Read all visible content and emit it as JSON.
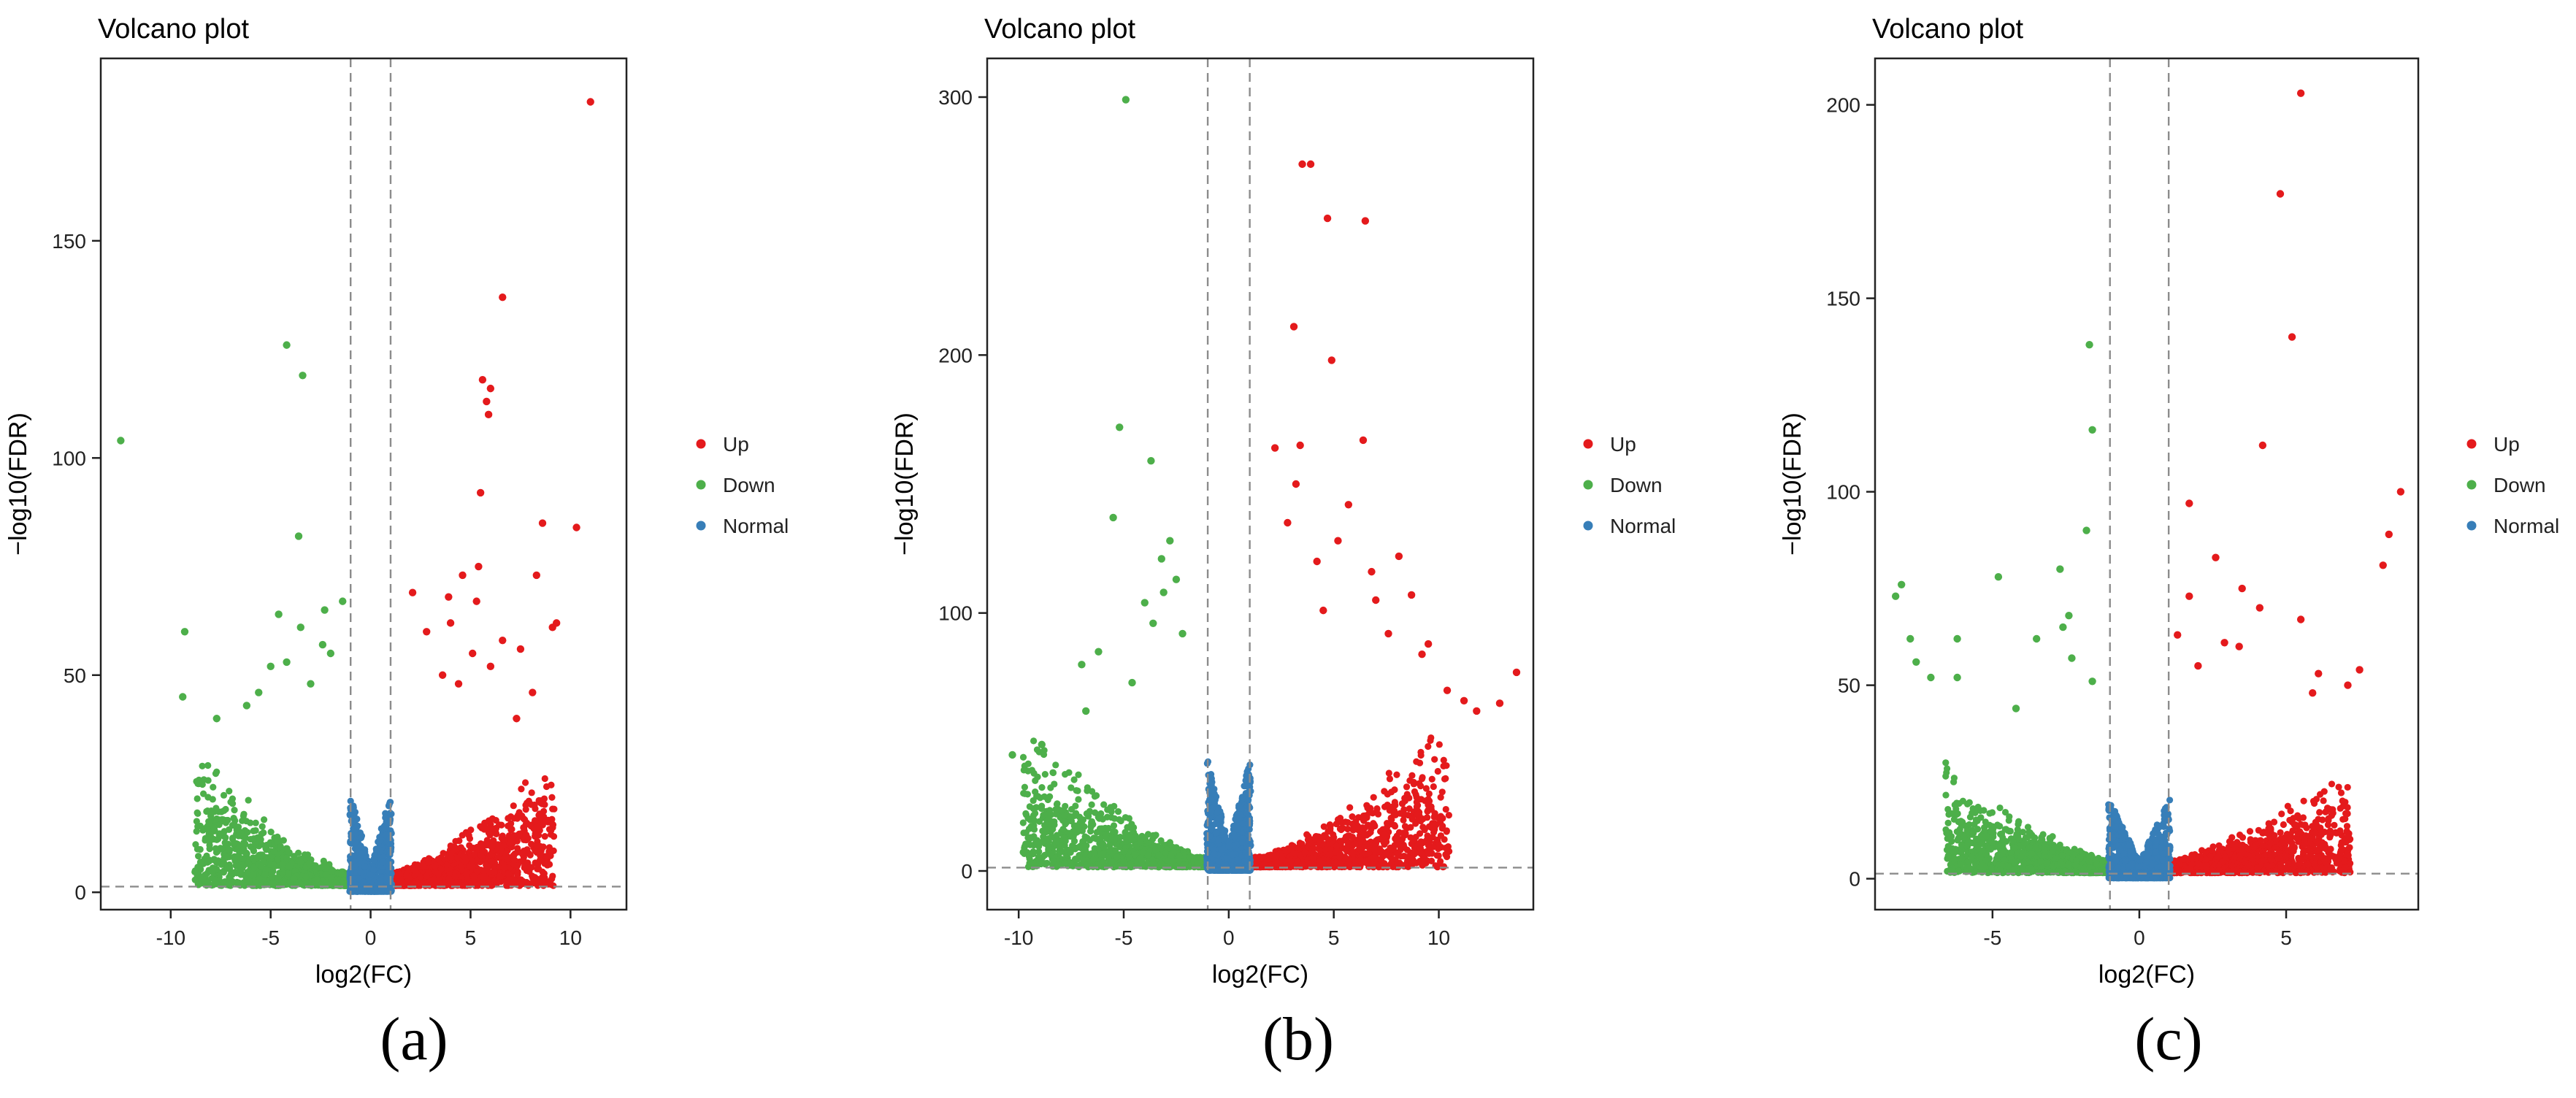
{
  "panels": {
    "a": {
      "label": "(a)"
    },
    "b": {
      "label": "(b)"
    },
    "c": {
      "label": "(c)"
    }
  },
  "colors": {
    "up": "#e41a1c",
    "down": "#4daf4a",
    "normal": "#377eb8",
    "threshold": "#8c8c8c"
  },
  "chart_data": [
    {
      "type": "scatter",
      "panel": "a",
      "title": "Volcano plot",
      "xlabel": "log2(FC)",
      "ylabel": "−log10(FDR)",
      "xlim": [
        -13.5,
        12.8
      ],
      "ylim": [
        -4,
        192
      ],
      "xticks": [
        -10,
        -5,
        0,
        5,
        10
      ],
      "yticks": [
        0,
        50,
        100,
        150
      ],
      "thresholds": {
        "fc": [
          -1,
          1
        ],
        "fdr": 1.3
      },
      "legend": {
        "position": "right",
        "entries": [
          "Up",
          "Down",
          "Normal"
        ]
      },
      "series": [
        {
          "name": "Up",
          "color": "#e41a1c",
          "points": [
            [
              11,
              182
            ],
            [
              6.6,
              137
            ],
            [
              5.6,
              118
            ],
            [
              6,
              116
            ],
            [
              5.8,
              113
            ],
            [
              5.9,
              110
            ],
            [
              5.5,
              92
            ],
            [
              10.3,
              84
            ],
            [
              8.6,
              85
            ],
            [
              8.3,
              73
            ],
            [
              9.3,
              62
            ],
            [
              9.1,
              61
            ],
            [
              5.4,
              75
            ],
            [
              5.3,
              67
            ],
            [
              2.1,
              69
            ],
            [
              3.9,
              68
            ],
            [
              4.6,
              73
            ],
            [
              6.6,
              58
            ],
            [
              4,
              62
            ],
            [
              5.1,
              55
            ],
            [
              7.5,
              56
            ],
            [
              2.8,
              60
            ],
            [
              3.6,
              50
            ],
            [
              6,
              52
            ],
            [
              4.4,
              48
            ],
            [
              8.1,
              46
            ],
            [
              7.3,
              40
            ]
          ]
        },
        {
          "name": "Down",
          "color": "#4daf4a",
          "points": [
            [
              -12.5,
              104
            ],
            [
              -4.2,
              126
            ],
            [
              -3.4,
              119
            ],
            [
              -3.6,
              82
            ],
            [
              -9.3,
              60
            ],
            [
              -9.4,
              45
            ],
            [
              -1.4,
              67
            ],
            [
              -2.3,
              65
            ],
            [
              -4.6,
              64
            ],
            [
              -3.5,
              61
            ],
            [
              -2.4,
              57
            ],
            [
              -2,
              55
            ],
            [
              -4.2,
              53
            ],
            [
              -5,
              52
            ],
            [
              -6.2,
              43
            ],
            [
              -7.7,
              40
            ],
            [
              -3,
              48
            ],
            [
              -5.6,
              46
            ]
          ]
        }
      ],
      "cloud": {
        "up_xmax": 9.2,
        "down_xmin": -8.8,
        "ceiling": 32
      }
    },
    {
      "type": "scatter",
      "panel": "b",
      "title": "Volcano plot",
      "xlabel": "log2(FC)",
      "ylabel": "−log10(FDR)",
      "xlim": [
        -11.5,
        14.5
      ],
      "ylim": [
        -15,
        315
      ],
      "xticks": [
        -10,
        -5,
        0,
        5,
        10
      ],
      "yticks": [
        0,
        100,
        200,
        300
      ],
      "thresholds": {
        "fc": [
          -1,
          1
        ],
        "fdr": 1.3
      },
      "legend": {
        "position": "right",
        "entries": [
          "Up",
          "Down",
          "Normal"
        ]
      },
      "series": [
        {
          "name": "Up",
          "color": "#e41a1c",
          "points": [
            [
              3.5,
              274
            ],
            [
              3.9,
              274
            ],
            [
              4.7,
              253
            ],
            [
              6.5,
              252
            ],
            [
              3.1,
              211
            ],
            [
              4.9,
              198
            ],
            [
              6.4,
              167
            ],
            [
              3.4,
              165
            ],
            [
              2.2,
              164
            ],
            [
              5.7,
              142
            ],
            [
              8.1,
              122
            ],
            [
              8.7,
              107
            ],
            [
              13.7,
              77
            ],
            [
              12.9,
              65
            ],
            [
              10.4,
              70
            ],
            [
              11.8,
              62
            ],
            [
              9.5,
              88
            ],
            [
              7,
              105
            ],
            [
              4.2,
              120
            ],
            [
              2.8,
              135
            ],
            [
              5.2,
              128
            ],
            [
              6.8,
              116
            ],
            [
              9.2,
              84
            ],
            [
              11.2,
              66
            ],
            [
              4.5,
              101
            ],
            [
              7.6,
              92
            ],
            [
              3.2,
              150
            ]
          ]
        },
        {
          "name": "Down",
          "color": "#4daf4a",
          "points": [
            [
              -4.9,
              299
            ],
            [
              -5.2,
              172
            ],
            [
              -3.7,
              159
            ],
            [
              -5.5,
              137
            ],
            [
              -2.5,
              113
            ],
            [
              -3.2,
              121
            ],
            [
              -2.8,
              128
            ],
            [
              -4,
              104
            ],
            [
              -6.2,
              85
            ],
            [
              -7,
              80
            ],
            [
              -10.3,
              45
            ],
            [
              -8.9,
              49
            ],
            [
              -6.8,
              62
            ],
            [
              -3.6,
              96
            ],
            [
              -2.2,
              92
            ],
            [
              -4.6,
              73
            ],
            [
              -3.1,
              108
            ]
          ]
        }
      ],
      "cloud": {
        "up_xmax": 10.5,
        "down_xmin": -9.8,
        "ceiling": 60
      }
    },
    {
      "type": "scatter",
      "panel": "c",
      "title": "Volcano plot",
      "xlabel": "log2(FC)",
      "ylabel": "−log10(FDR)",
      "xlim": [
        -9,
        9.5
      ],
      "ylim": [
        -8,
        212
      ],
      "xticks": [
        -5,
        0,
        5
      ],
      "yticks": [
        0,
        50,
        100,
        150,
        200
      ],
      "thresholds": {
        "fc": [
          -1,
          1
        ],
        "fdr": 1.3
      },
      "legend": {
        "position": "right",
        "entries": [
          "Up",
          "Down",
          "Normal"
        ]
      },
      "series": [
        {
          "name": "Up",
          "color": "#e41a1c",
          "points": [
            [
              5.5,
              203
            ],
            [
              4.8,
              177
            ],
            [
              5.2,
              140
            ],
            [
              4.2,
              112
            ],
            [
              8.9,
              100
            ],
            [
              1.7,
              97
            ],
            [
              8.5,
              89
            ],
            [
              8.3,
              81
            ],
            [
              2.6,
              83
            ],
            [
              3.5,
              75
            ],
            [
              1.7,
              73
            ],
            [
              4.1,
              70
            ],
            [
              1.3,
              63
            ],
            [
              5.5,
              67
            ],
            [
              2.9,
              61
            ],
            [
              3.4,
              60
            ],
            [
              6.1,
              53
            ],
            [
              7.5,
              54
            ],
            [
              7.1,
              50
            ],
            [
              5.9,
              48
            ],
            [
              2,
              55
            ]
          ]
        },
        {
          "name": "Down",
          "color": "#4daf4a",
          "points": [
            [
              -1.7,
              138
            ],
            [
              -1.6,
              116
            ],
            [
              -1.8,
              90
            ],
            [
              -8.1,
              76
            ],
            [
              -8.3,
              73
            ],
            [
              -2.7,
              80
            ],
            [
              -4.8,
              78
            ],
            [
              -2.4,
              68
            ],
            [
              -2.6,
              65
            ],
            [
              -7.8,
              62
            ],
            [
              -6.2,
              62
            ],
            [
              -3.5,
              62
            ],
            [
              -2.3,
              57
            ],
            [
              -1.6,
              51
            ],
            [
              -7.6,
              56
            ],
            [
              -7.1,
              52
            ],
            [
              -6.2,
              52
            ],
            [
              -4.2,
              44
            ]
          ]
        }
      ],
      "cloud": {
        "up_xmax": 7.2,
        "down_xmin": -6.6,
        "ceiling": 28
      }
    }
  ]
}
